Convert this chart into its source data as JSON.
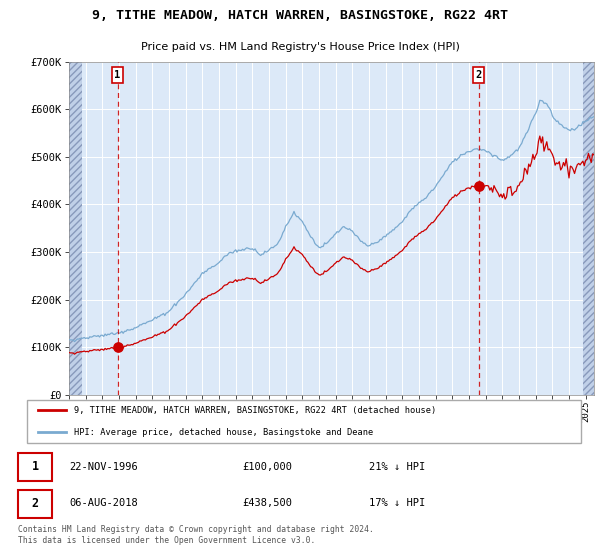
{
  "title": "9, TITHE MEADOW, HATCH WARREN, BASINGSTOKE, RG22 4RT",
  "subtitle": "Price paid vs. HM Land Registry's House Price Index (HPI)",
  "bg_color": "#dce9f8",
  "plot_bg_color": "#dce9f8",
  "hatch_bg_color": "#c0d0e8",
  "red_color": "#cc0000",
  "blue_color": "#7aaad0",
  "vline_color": "#cc0000",
  "sale1_date_num": 1996.917,
  "sale1_price": 100000,
  "sale2_date_num": 2018.583,
  "sale2_price": 438500,
  "sale1_date_str": "22-NOV-1996",
  "sale1_price_str": "£100,000",
  "sale1_pct_str": "21% ↓ HPI",
  "sale2_date_str": "06-AUG-2018",
  "sale2_price_str": "£438,500",
  "sale2_pct_str": "17% ↓ HPI",
  "legend1": "9, TITHE MEADOW, HATCH WARREN, BASINGSTOKE, RG22 4RT (detached house)",
  "legend2": "HPI: Average price, detached house, Basingstoke and Deane",
  "copyright": "Contains HM Land Registry data © Crown copyright and database right 2024.\nThis data is licensed under the Open Government Licence v3.0.",
  "ylim": [
    0,
    700000
  ],
  "xlim_start": 1994.0,
  "xlim_end": 2025.5,
  "yticks": [
    0,
    100000,
    200000,
    300000,
    400000,
    500000,
    600000,
    700000
  ],
  "ytick_labels": [
    "£0",
    "£100K",
    "£200K",
    "£300K",
    "£400K",
    "£500K",
    "£600K",
    "£700K"
  ]
}
